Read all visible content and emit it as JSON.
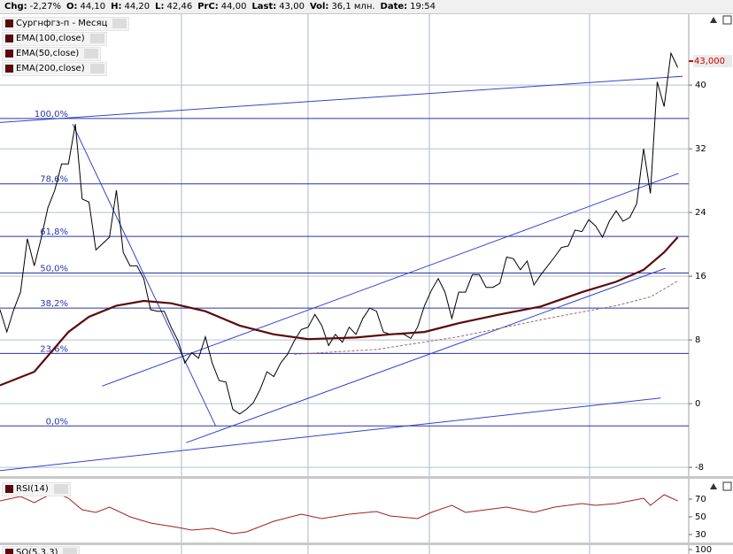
{
  "header": {
    "fields": [
      {
        "label": "Chg:",
        "value": "-2,27%"
      },
      {
        "label": "O:",
        "value": "44,10"
      },
      {
        "label": "H:",
        "value": "44,20"
      },
      {
        "label": "L:",
        "value": "42,46"
      },
      {
        "label": "PrC:",
        "value": "44,00"
      },
      {
        "label": "Last:",
        "value": "43,00"
      },
      {
        "label": "Vol:",
        "value": "36,1 млн."
      },
      {
        "label": "Date:",
        "value": "19:54"
      }
    ]
  },
  "chart_data": [
    {
      "type": "line",
      "xlim": [
        0,
        100.6
      ],
      "ylim": [
        -9.1,
        48.9
      ],
      "yticks": [
        40,
        32,
        24,
        16,
        8,
        0,
        -8
      ],
      "grid": true,
      "series": [
        {
          "name": "Сургнфгз-п - Месяц",
          "color": "#000000",
          "values": [
            11.8,
            9.0,
            11.8,
            14.0,
            20.7,
            17.3,
            20.7,
            24.6,
            26.8,
            30.1,
            30.1,
            35.1,
            25.7,
            25.3,
            19.3,
            20.1,
            20.9,
            26.8,
            19.0,
            17.3,
            17.3,
            15.7,
            11.8,
            11.6,
            11.6,
            9.6,
            7.9,
            5.1,
            6.4,
            5.7,
            8.4,
            5.1,
            2.9,
            2.7,
            -0.7,
            -1.3,
            -0.7,
            0.1,
            1.8,
            4.0,
            3.4,
            5.1,
            6.2,
            7.9,
            9.3,
            9.6,
            11.2,
            9.8,
            7.3,
            8.7,
            7.7,
            9.6,
            8.7,
            10.7,
            12.0,
            11.6,
            9.0,
            8.7,
            8.7,
            8.7,
            8.2,
            9.6,
            12.3,
            14.2,
            15.7,
            14.0,
            10.7,
            14.0,
            14.0,
            16.2,
            16.2,
            14.6,
            14.6,
            15.1,
            18.4,
            18.2,
            16.8,
            17.9,
            14.9,
            16.2,
            17.3,
            18.4,
            19.6,
            19.8,
            21.8,
            21.6,
            23.1,
            22.3,
            20.9,
            22.9,
            24.2,
            22.9,
            23.4,
            25.1,
            32.0,
            26.4,
            40.4,
            37.3,
            44.0,
            42.2
          ]
        },
        {
          "name": "EMA(100,close)",
          "color": "#5a0a0a",
          "x": [
            0,
            5,
            10,
            13,
            17,
            21,
            25,
            30,
            35,
            40,
            45,
            52,
            57,
            62,
            67,
            73,
            79,
            85,
            90,
            94,
            97,
            99
          ],
          "values": [
            2.3,
            4.0,
            9.0,
            10.9,
            12.3,
            12.9,
            12.6,
            11.6,
            9.8,
            8.7,
            8.1,
            8.3,
            8.7,
            9.0,
            10.1,
            11.2,
            12.2,
            14.0,
            15.3,
            16.8,
            19.0,
            20.9
          ]
        },
        {
          "name": "EMA(50,close)",
          "color": "#5a0a0a",
          "x": [],
          "values": []
        },
        {
          "name": "EMA(200,close)",
          "color": "#a06868",
          "dashed": true,
          "x": [
            43,
            55,
            67,
            80,
            90,
            95,
            99
          ],
          "values": [
            6.2,
            6.8,
            8.4,
            10.7,
            12.3,
            13.4,
            15.4
          ]
        }
      ],
      "last_price": {
        "value": 43,
        "label": "43,000"
      },
      "fib_levels": [
        {
          "label": "100,0%",
          "value": 35.8
        },
        {
          "label": "78,6%",
          "value": 27.6
        },
        {
          "label": "61,8%",
          "value": 21.0
        },
        {
          "label": "50,0%",
          "value": 16.4
        },
        {
          "label": "38,2%",
          "value": 12.0
        },
        {
          "label": "23,6%",
          "value": 6.3
        },
        {
          "label": "0,0%",
          "value": -2.8
        }
      ],
      "trendlines": [
        {
          "x": [
            0,
            99.7
          ],
          "values": [
            35.3,
            41.1
          ]
        },
        {
          "x": [
            10.6,
            31.5
          ],
          "values": [
            35.1,
            -2.8
          ]
        },
        {
          "x": [
            14.9,
            99.1
          ],
          "values": [
            2.2,
            28.9
          ]
        },
        {
          "x": [
            27.2,
            97.2
          ],
          "values": [
            -4.9,
            17.0
          ]
        },
        {
          "x": [
            0,
            96.5
          ],
          "values": [
            -8.4,
            0.7
          ]
        }
      ]
    },
    {
      "type": "line",
      "xlim": [
        0,
        100.6
      ],
      "ylim": [
        21,
        93
      ],
      "yticks": [
        70,
        50,
        30
      ],
      "series": [
        {
          "name": "RSI(14)",
          "color": "#a02020",
          "x": [
            0,
            3,
            5,
            8,
            10,
            12,
            14,
            16,
            19,
            22,
            26,
            28,
            31,
            34,
            36,
            40,
            44,
            47,
            51,
            55,
            57,
            61,
            63,
            66,
            68,
            71,
            74,
            78,
            81,
            85,
            87,
            90,
            94,
            95,
            97,
            99
          ],
          "values": [
            68,
            73,
            66,
            78,
            71,
            58,
            55,
            61,
            50,
            43,
            38,
            35,
            37,
            31,
            33,
            45,
            53,
            48,
            53,
            56,
            51,
            48,
            55,
            63,
            55,
            58,
            61,
            55,
            61,
            65,
            63,
            65,
            71,
            63,
            75,
            68
          ]
        }
      ]
    },
    {
      "type": "line",
      "ylim": [
        0,
        100
      ],
      "yticks": [
        100
      ],
      "series": [
        {
          "name": "SO(5,3,3)",
          "values": []
        }
      ]
    }
  ]
}
